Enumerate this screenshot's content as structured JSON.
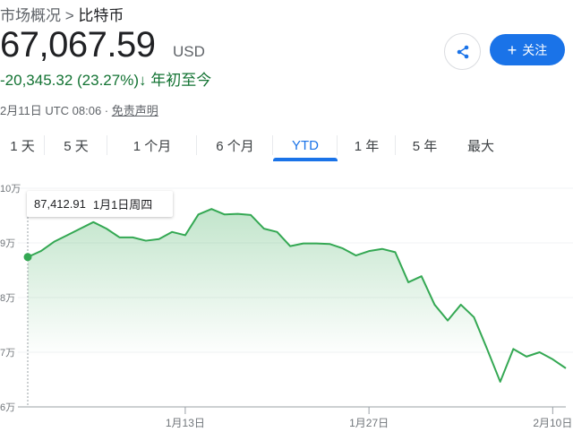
{
  "breadcrumb": {
    "parent": "市场概况",
    "separator": ">",
    "current": "比特币"
  },
  "quote": {
    "price": "67,067.59",
    "currency": "USD",
    "change": "-20,345.32 (23.27%)",
    "change_direction": "down",
    "period": "年初至今",
    "timestamp": "2月11日 UTC 08:06 ·",
    "disclaimer": "免责声明"
  },
  "actions": {
    "share_icon": "share-icon",
    "follow_label": "关注",
    "follow_icon": "plus-icon"
  },
  "tabs": [
    {
      "label": "1 天"
    },
    {
      "label": "5 天"
    },
    {
      "label": "1 个月"
    },
    {
      "label": "6 个月"
    },
    {
      "label": "YTD",
      "active": true
    },
    {
      "label": "1 年"
    },
    {
      "label": "5 年"
    },
    {
      "label": "最大"
    }
  ],
  "colors": {
    "accent": "#1a73e8",
    "line": "#34a853",
    "negative": "#137333"
  },
  "tooltip": {
    "value": "87,412.91",
    "date": "1月1日周四"
  },
  "chart_data": {
    "type": "area",
    "y_ticks": [
      "10万",
      "9万",
      "8万",
      "7万",
      "6万"
    ],
    "ylim": [
      60000,
      100000
    ],
    "x_ticks": [
      "1月13日",
      "1月27日",
      "2月10日"
    ],
    "x_start": "1月1日",
    "x_end": "2月11日",
    "grid": true,
    "values": [
      87412.91,
      88500,
      90200,
      91400,
      92600,
      93800,
      92600,
      91000,
      91000,
      90400,
      90700,
      92000,
      91400,
      95200,
      96200,
      95200,
      95300,
      95100,
      92600,
      92000,
      89400,
      89900,
      89900,
      89800,
      89000,
      87700,
      88500,
      88900,
      88300,
      82800,
      83900,
      78700,
      75800,
      78700,
      76400,
      70600,
      64600,
      70600,
      69200,
      70000,
      68700,
      67067.59
    ]
  }
}
